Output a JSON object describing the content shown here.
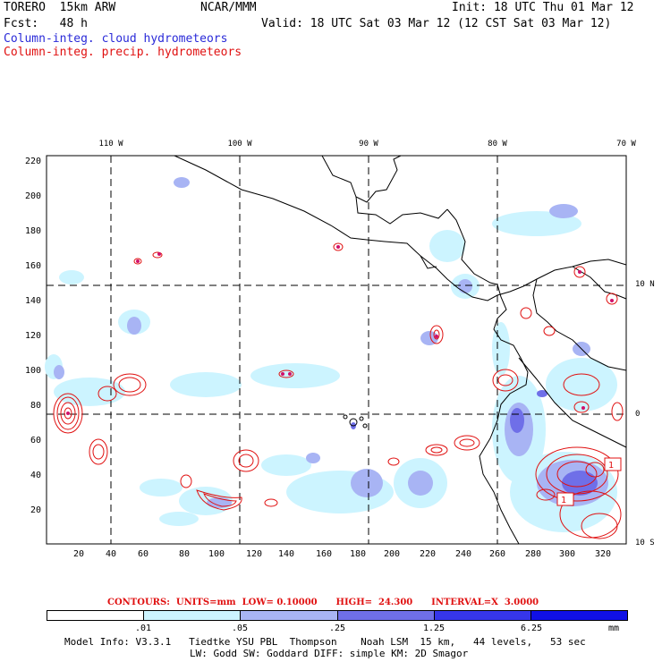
{
  "header": {
    "line1_left": "TORERO  15km ARW",
    "line1_mid": "NCAR/MMM",
    "line1_right": "Init: 18 UTC Thu 01 Mar 12",
    "line2_left": "Fcst:   48 h",
    "line2_right": "Valid: 18 UTC Sat 03 Mar 12 (12 CST Sat 03 Mar 12)",
    "legend_cloud": "Column-integ. cloud hydrometeors",
    "legend_precip": "Column-integ. precip. hydrometeors"
  },
  "colors": {
    "cloud_label": "#2a2ad8",
    "precip": "#e01010",
    "coast": "#000000"
  },
  "map": {
    "lon_labels": [
      "110 W",
      "100 W",
      "90 W",
      "80 W",
      "70 W"
    ],
    "lat_labels": [
      "10 N",
      "0",
      "10 S"
    ],
    "y_ticks": [
      "220",
      "200",
      "180",
      "160",
      "140",
      "120",
      "100",
      "80",
      "60",
      "40",
      "20"
    ],
    "x_ticks": [
      "20",
      "40",
      "60",
      "80",
      "100",
      "120",
      "140",
      "160",
      "180",
      "200",
      "220",
      "240",
      "260",
      "280",
      "300",
      "320"
    ],
    "contour_labels": [
      "1",
      "1"
    ]
  },
  "contour_info": "CONTOURS:  UNITS=mm  LOW= 0.10000      HIGH=  24.300      INTERVAL=X  3.0000",
  "colorbar": {
    "colors": [
      "#ffffff",
      "#ccf4ff",
      "#a8b4f4",
      "#6f6fe8",
      "#3636ea",
      "#1010e6"
    ],
    "ticks": [
      ".01",
      ".05",
      ".25",
      "1.25",
      "6.25"
    ],
    "unit": "mm"
  },
  "model_info": {
    "line1": "Model Info: V3.3.1   Tiedtke YSU PBL  Thompson    Noah LSM  15 km,   44 levels,   53 sec",
    "line2": "LW: Godd SW: Goddard DIFF: simple KM: 2D Smagor"
  }
}
